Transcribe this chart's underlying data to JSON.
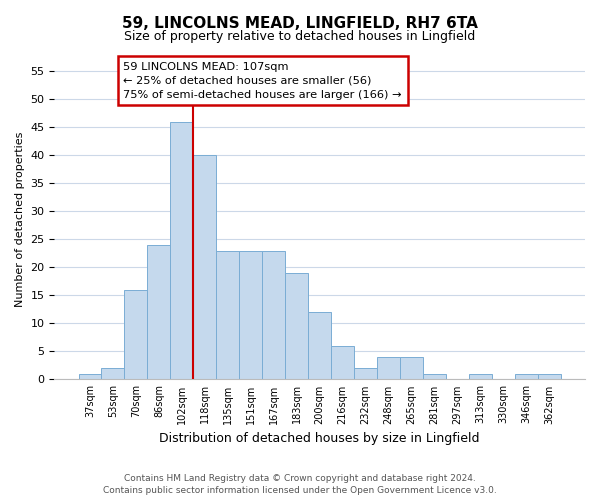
{
  "title": "59, LINCOLNS MEAD, LINGFIELD, RH7 6TA",
  "subtitle": "Size of property relative to detached houses in Lingfield",
  "xlabel": "Distribution of detached houses by size in Lingfield",
  "ylabel": "Number of detached properties",
  "bar_labels": [
    "37sqm",
    "53sqm",
    "70sqm",
    "86sqm",
    "102sqm",
    "118sqm",
    "135sqm",
    "151sqm",
    "167sqm",
    "183sqm",
    "200sqm",
    "216sqm",
    "232sqm",
    "248sqm",
    "265sqm",
    "281sqm",
    "297sqm",
    "313sqm",
    "330sqm",
    "346sqm",
    "362sqm"
  ],
  "bar_values": [
    1,
    2,
    16,
    24,
    46,
    40,
    23,
    23,
    23,
    19,
    12,
    6,
    2,
    4,
    4,
    1,
    0,
    1,
    0,
    1,
    1
  ],
  "bar_color": "#c5d9ed",
  "bar_edge_color": "#7aadd4",
  "vline_color": "#cc0000",
  "ylim": [
    0,
    57
  ],
  "yticks": [
    0,
    5,
    10,
    15,
    20,
    25,
    30,
    35,
    40,
    45,
    50,
    55
  ],
  "annotation_text": "59 LINCOLNS MEAD: 107sqm\n← 25% of detached houses are smaller (56)\n75% of semi-detached houses are larger (166) →",
  "annotation_box_color": "#ffffff",
  "annotation_box_edge": "#cc0000",
  "footer_line1": "Contains HM Land Registry data © Crown copyright and database right 2024.",
  "footer_line2": "Contains public sector information licensed under the Open Government Licence v3.0.",
  "background_color": "#ffffff",
  "grid_color": "#ccd8e8"
}
